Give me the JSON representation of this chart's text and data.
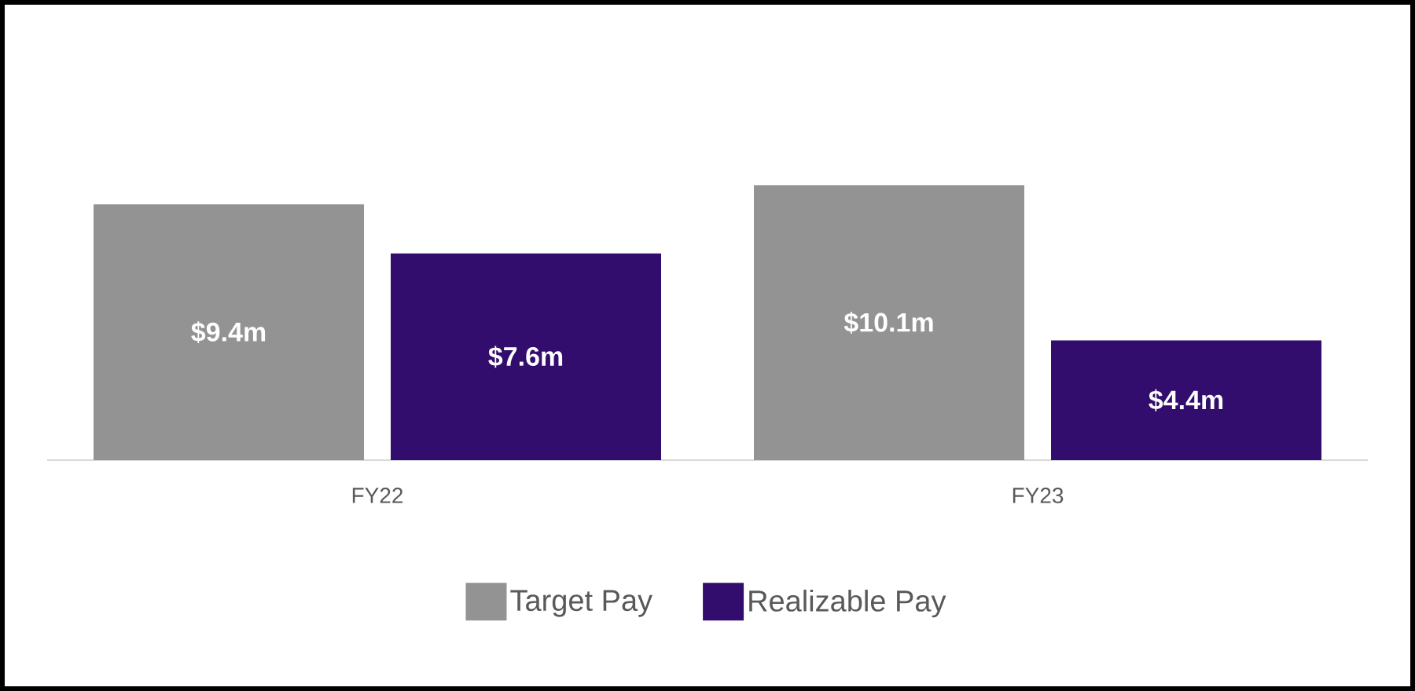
{
  "chart_data": {
    "type": "bar",
    "categories": [
      "FY22",
      "FY23"
    ],
    "series": [
      {
        "name": "Target Pay",
        "color": "#939393",
        "values": [
          9.4,
          10.1
        ],
        "value_labels": [
          "$9.4m",
          "$10.1m"
        ]
      },
      {
        "name": "Realizable Pay",
        "color": "#320d6d",
        "values": [
          7.6,
          4.4
        ],
        "value_labels": [
          "$7.6m",
          "$4.4m"
        ]
      }
    ],
    "legend": "bottom",
    "grid": false
  }
}
